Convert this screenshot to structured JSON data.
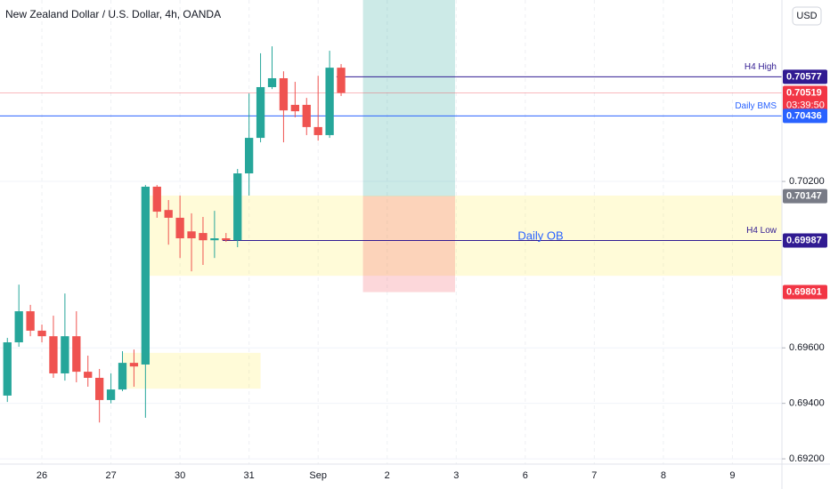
{
  "chart_data": {
    "type": "candlestick",
    "title": "New Zealand Dollar / U.S. Dollar, 4h, OANDA",
    "currency": "USD",
    "up_color": "#26a69a",
    "down_color": "#ef5350",
    "xlim": [
      -0.64,
      67.3
    ],
    "ylim": [
      0.69181,
      0.70854
    ],
    "xticks": [
      {
        "value": 3,
        "label": "26"
      },
      {
        "value": 9,
        "label": "27"
      },
      {
        "value": 15,
        "label": "30"
      },
      {
        "value": 21,
        "label": "31"
      },
      {
        "value": 27,
        "label": "Sep"
      },
      {
        "value": 33,
        "label": "2"
      },
      {
        "value": 39,
        "label": "3"
      },
      {
        "value": 45,
        "label": "6"
      },
      {
        "value": 51,
        "label": "7"
      },
      {
        "value": 57,
        "label": "8"
      },
      {
        "value": 63,
        "label": "9"
      }
    ],
    "yticks": [
      {
        "value": 0.692,
        "label": "0.69200"
      },
      {
        "value": 0.694,
        "label": "0.69400"
      },
      {
        "value": 0.696,
        "label": "0.69600"
      },
      {
        "value": 0.702,
        "label": "0.70200"
      }
    ],
    "grid": true,
    "candles": {
      "open": [
        0.69428,
        0.6962,
        0.69732,
        0.69662,
        0.69642,
        0.69508,
        0.69642,
        0.69514,
        0.69492,
        0.69412,
        0.6945,
        0.69546,
        0.6954,
        0.70181,
        0.70097,
        0.70069,
        0.7002,
        0.70014,
        0.69988,
        0.69995,
        0.69988,
        0.70229,
        0.70357,
        0.7054,
        0.70572,
        0.70476,
        0.70476,
        0.70396,
        0.70367,
        0.7061
      ],
      "high": [
        0.69636,
        0.69828,
        0.69755,
        0.69684,
        0.69716,
        0.69796,
        0.69732,
        0.69572,
        0.69524,
        0.69508,
        0.69588,
        0.69594,
        0.70187,
        0.70187,
        0.70133,
        0.70149,
        0.70085,
        0.70072,
        0.70094,
        0.70014,
        0.70245,
        0.70517,
        0.70662,
        0.70687,
        0.70597,
        0.70559,
        0.70501,
        0.70581,
        0.70671,
        0.70623
      ],
      "low": [
        0.69405,
        0.69604,
        0.69642,
        0.6962,
        0.69492,
        0.69482,
        0.69476,
        0.6946,
        0.69331,
        0.694,
        0.69444,
        0.6946,
        0.69348,
        0.70069,
        0.69972,
        0.69924,
        0.69876,
        0.69899,
        0.69924,
        0.69982,
        0.69963,
        0.70149,
        0.70341,
        0.70533,
        0.70341,
        0.70431,
        0.70367,
        0.70347,
        0.70357,
        0.70508
      ],
      "close": [
        0.6962,
        0.69732,
        0.69662,
        0.69642,
        0.69508,
        0.69642,
        0.69514,
        0.69492,
        0.69412,
        0.6945,
        0.69546,
        0.69533,
        0.70181,
        0.70091,
        0.70069,
        0.69995,
        0.69995,
        0.69988,
        0.69995,
        0.69988,
        0.70229,
        0.70357,
        0.7054,
        0.70572,
        0.70456,
        0.70453,
        0.70396,
        0.70367,
        0.7061,
        0.70519
      ]
    },
    "zones": [
      {
        "x0": 12,
        "x1": 67.3,
        "y0": 0.6986,
        "y1": 0.70149,
        "color": "rgba(255,235,59,0.2)"
      },
      {
        "x0": 10,
        "x1": 22,
        "y0": 0.69453,
        "y1": 0.69582,
        "color": "rgba(255,235,59,0.2)"
      },
      {
        "x0": 30.9,
        "x1": 38.9,
        "y0": 0.70147,
        "y1": 0.70854,
        "color": "rgba(0,150,136,0.2)"
      },
      {
        "x0": 30.9,
        "x1": 38.9,
        "y0": 0.69801,
        "y1": 0.70147,
        "color": "rgba(242,54,69,0.2)"
      }
    ],
    "levels": [
      {
        "name": "H4 High",
        "value": 0.70577,
        "color": "#311b92",
        "from": 28.6
      },
      {
        "value": 0.70519,
        "countdown": "03:39:50",
        "color": "#f23645",
        "from": -0.64
      },
      {
        "name": "Daily BMS",
        "value": 0.70436,
        "color": "#2962ff",
        "from": -0.64
      },
      {
        "value": 0.70147,
        "color": "#787b86"
      },
      {
        "name": "H4 Low",
        "value": 0.69987,
        "color": "#311b92",
        "from": 18.7
      },
      {
        "value": 0.69801,
        "color": "#f23645"
      }
    ],
    "annotations": [
      "Daily OB"
    ]
  }
}
